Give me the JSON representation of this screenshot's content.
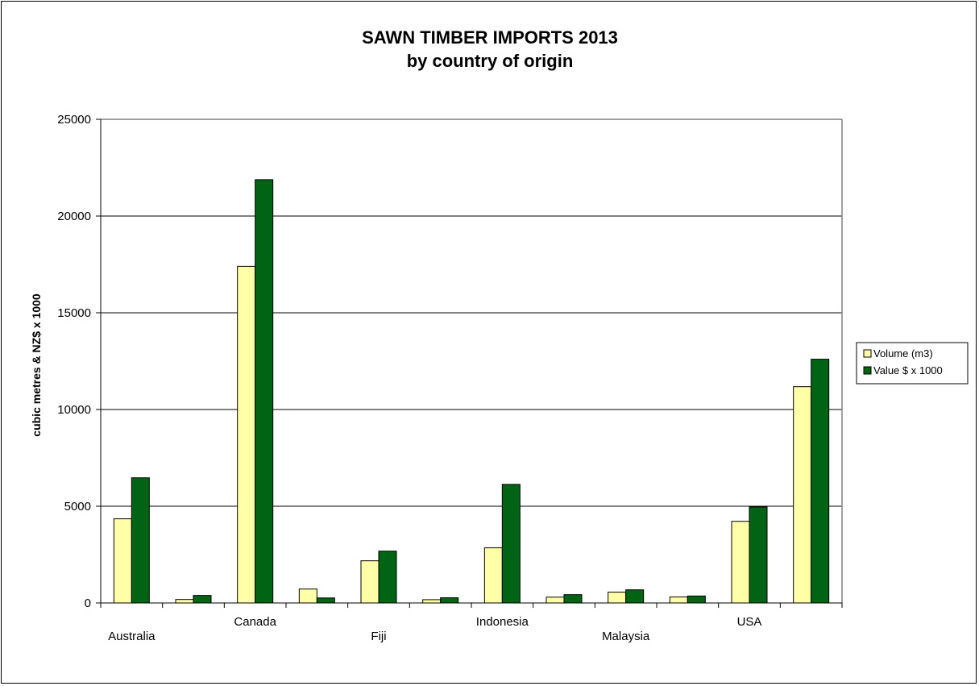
{
  "chart_data": {
    "type": "bar",
    "title": "SAWN TIMBER IMPORTS 2013",
    "subtitle": "by country of origin",
    "xlabel": "",
    "ylabel": "cubic metres & NZ$ x 1000",
    "ylim": [
      0,
      25000
    ],
    "yticks": [
      0,
      5000,
      10000,
      15000,
      20000,
      25000
    ],
    "grid": true,
    "legend_position": "right",
    "categories": [
      "Australia",
      "",
      "Canada",
      "",
      "Fiji",
      "",
      "Indonesia",
      "",
      "Malaysia",
      "",
      "USA",
      ""
    ],
    "series": [
      {
        "name": "Volume (m3)",
        "color": "#ffffa8",
        "values": [
          4350,
          180,
          17400,
          720,
          2180,
          170,
          2850,
          300,
          560,
          310,
          4220,
          11180
        ]
      },
      {
        "name": "Value $ x 1000",
        "color": "#006414",
        "values": [
          6470,
          390,
          21880,
          260,
          2680,
          270,
          6130,
          430,
          680,
          360,
          4960,
          12600
        ]
      }
    ]
  }
}
